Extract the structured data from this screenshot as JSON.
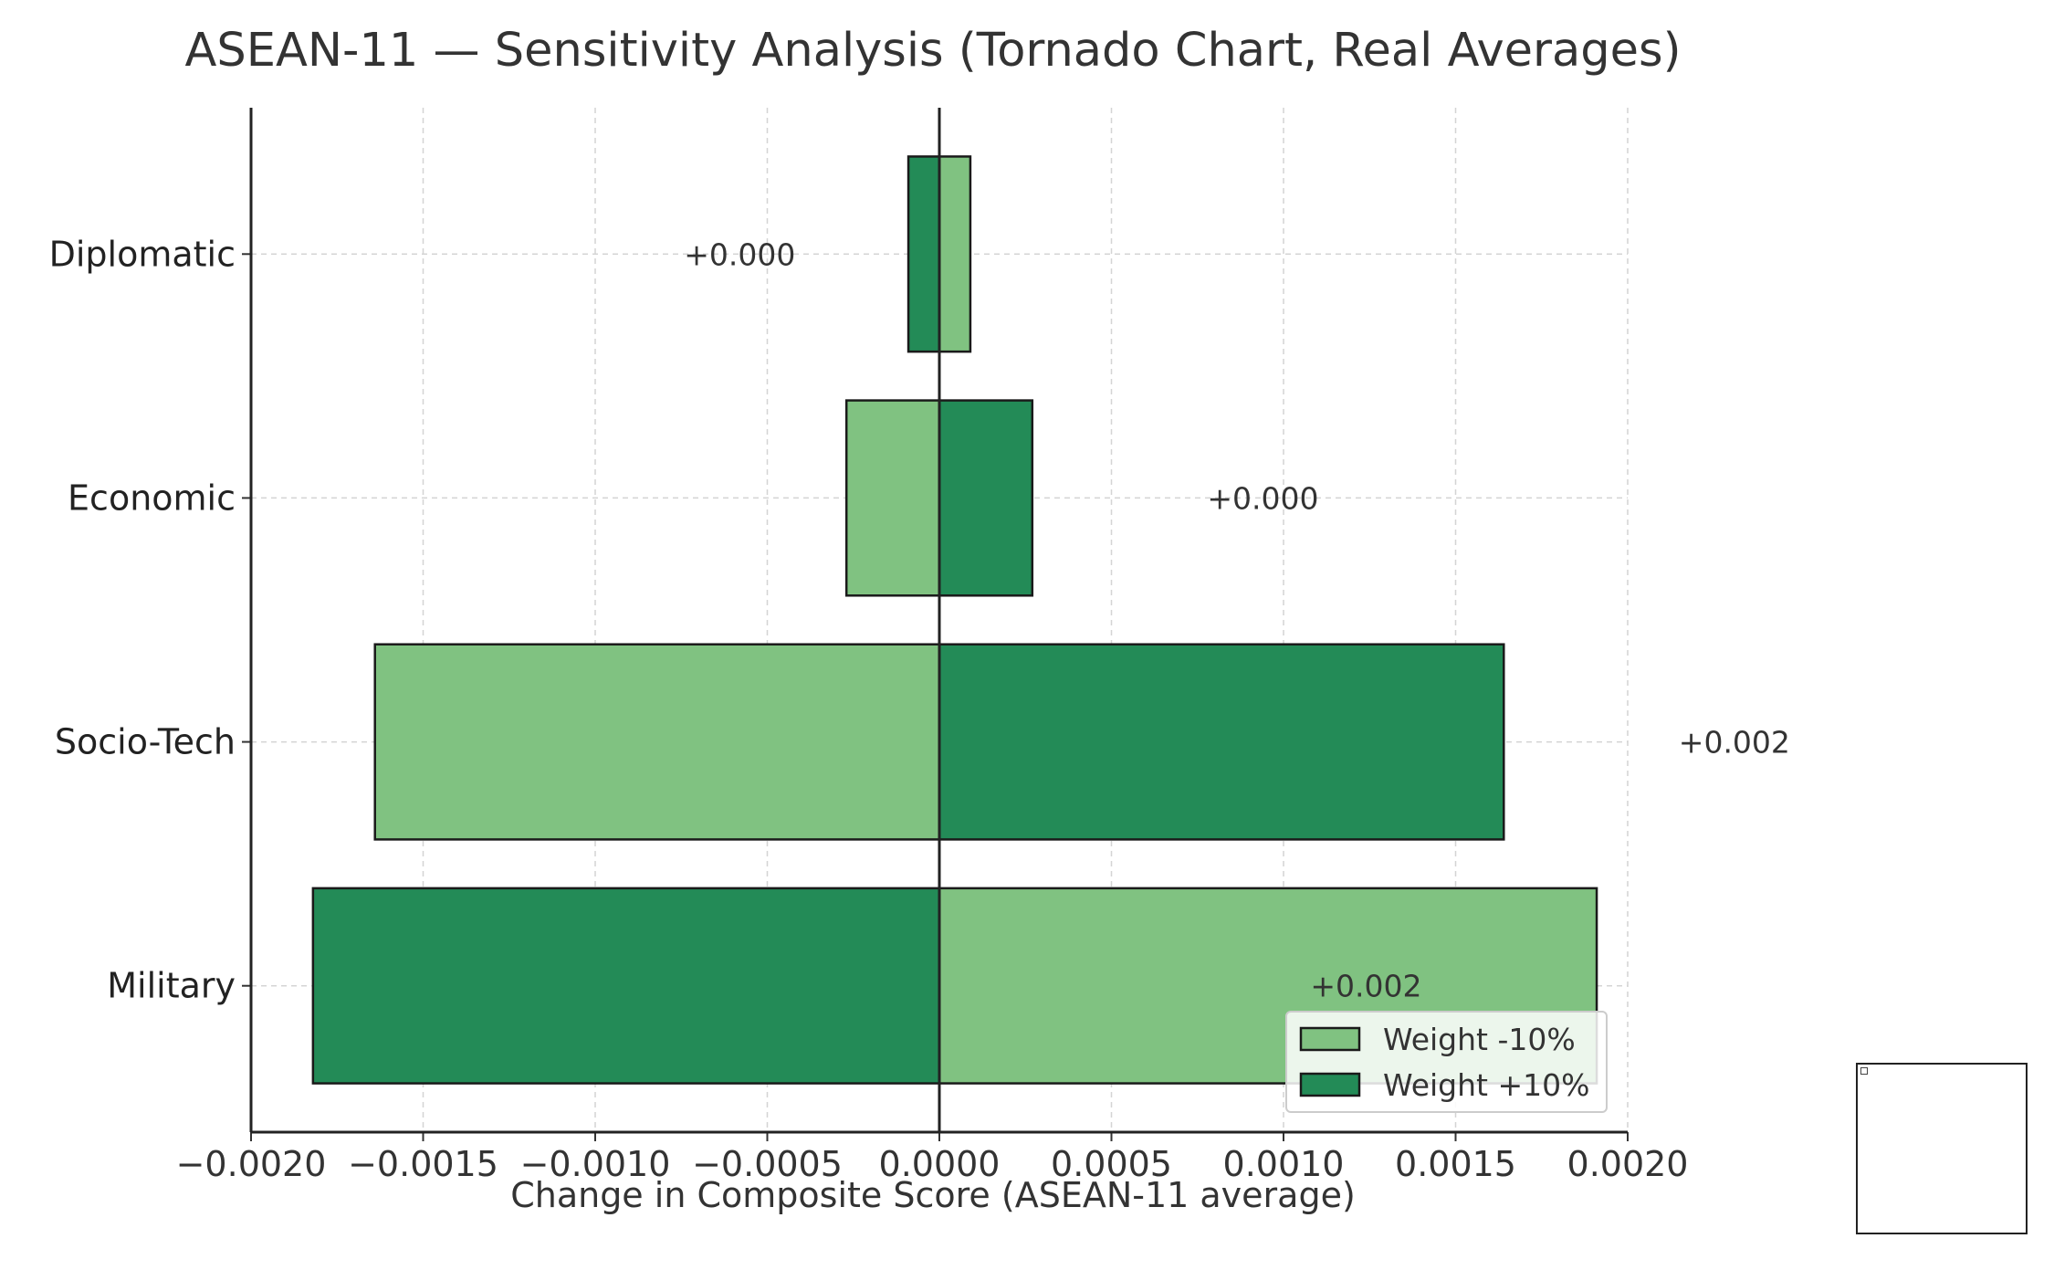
{
  "chart_data": {
    "type": "bar",
    "orientation": "horizontal",
    "title": "ASEAN-11 — Sensitivity Analysis (Tornado Chart, Real Averages)",
    "xlabel": "Change in Composite Score (ASEAN-11 average)",
    "ylabel": "",
    "xlim": [
      -0.002,
      0.002
    ],
    "xticks": [
      -0.002,
      -0.0015,
      -0.001,
      -0.0005,
      0.0,
      0.0005,
      0.001,
      0.0015,
      0.002
    ],
    "xtick_labels": [
      "−0.0020",
      "−0.0015",
      "−0.0010",
      "−0.0005",
      "0.0000",
      "0.0005",
      "0.0010",
      "0.0015",
      "0.0020"
    ],
    "categories": [
      "Diplomatic",
      "Economic",
      "Socio-Tech",
      "Military"
    ],
    "series": [
      {
        "name": "Weight -10%",
        "color": "#80c281",
        "values": [
          9e-05,
          -0.00027,
          -0.00164,
          0.00191
        ]
      },
      {
        "name": "Weight +10%",
        "color": "#238b57",
        "values": [
          -9e-05,
          0.00027,
          0.00164,
          -0.00182
        ]
      }
    ],
    "annotations": [
      {
        "category": "Diplomatic",
        "text": "+0.000",
        "x": -0.00058
      },
      {
        "category": "Economic",
        "text": "+0.000",
        "x": 0.00094
      },
      {
        "category": "Socio-Tech",
        "text": "+0.002",
        "x": 0.00231
      },
      {
        "category": "Military",
        "text": "+0.002",
        "x": 0.00124
      }
    ],
    "grid": true,
    "legend_position": "lower-right"
  }
}
